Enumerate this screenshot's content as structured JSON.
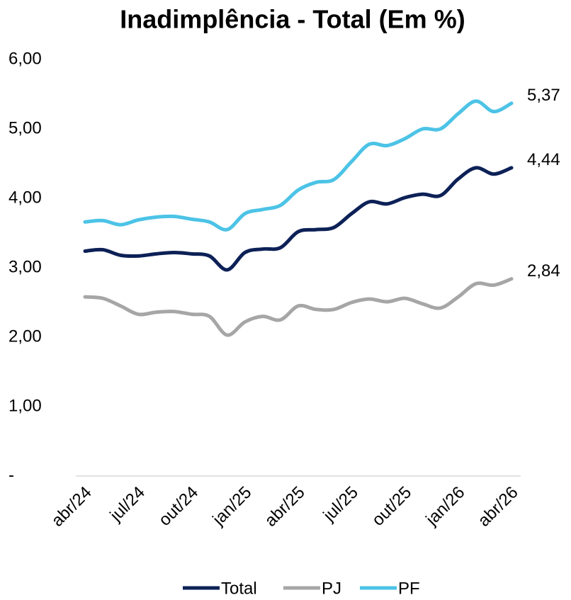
{
  "chart_data": {
    "type": "line",
    "title": "Inadimplência - Total (Em %)",
    "categories": [
      "abr/24",
      null,
      null,
      "jul/24",
      null,
      null,
      "out/24",
      null,
      null,
      "jan/25",
      null,
      null,
      "abr/25",
      null,
      null,
      "jul/25",
      null,
      null,
      "out/25",
      null,
      null,
      "jan/26",
      null,
      null,
      "abr/26"
    ],
    "series": [
      {
        "name": "Total",
        "color": "#0d2157",
        "values": [
          3.24,
          3.26,
          3.18,
          3.17,
          3.2,
          3.22,
          3.2,
          3.17,
          2.97,
          3.22,
          3.27,
          3.29,
          3.52,
          3.55,
          3.58,
          3.78,
          3.95,
          3.92,
          4.01,
          4.06,
          4.04,
          4.28,
          4.44,
          4.35,
          4.44
        ],
        "value_labels": [
          null,
          null,
          null,
          null,
          null,
          null,
          null,
          null,
          null,
          null,
          null,
          null,
          null,
          null,
          null,
          null,
          null,
          null,
          null,
          null,
          null,
          null,
          null,
          null,
          "4,44"
        ]
      },
      {
        "name": "PJ",
        "color": "#a6a6a6",
        "values": [
          2.58,
          2.56,
          2.45,
          2.33,
          2.36,
          2.37,
          2.33,
          2.3,
          2.03,
          2.22,
          2.3,
          2.25,
          2.45,
          2.4,
          2.4,
          2.5,
          2.55,
          2.51,
          2.56,
          2.48,
          2.42,
          2.58,
          2.77,
          2.75,
          2.84
        ],
        "value_labels": [
          null,
          null,
          null,
          null,
          null,
          null,
          null,
          null,
          null,
          null,
          null,
          null,
          null,
          null,
          null,
          null,
          null,
          null,
          null,
          null,
          null,
          null,
          null,
          null,
          "2,84"
        ]
      },
      {
        "name": "PF",
        "color": "#4cc3e6",
        "values": [
          3.66,
          3.68,
          3.62,
          3.69,
          3.73,
          3.74,
          3.7,
          3.66,
          3.55,
          3.78,
          3.84,
          3.9,
          4.12,
          4.23,
          4.27,
          4.53,
          4.78,
          4.76,
          4.86,
          5.0,
          5.0,
          5.22,
          5.4,
          5.25,
          5.37
        ],
        "value_labels": [
          null,
          null,
          null,
          null,
          null,
          null,
          null,
          null,
          null,
          null,
          null,
          null,
          null,
          null,
          null,
          null,
          null,
          null,
          null,
          null,
          null,
          null,
          null,
          null,
          "5,37"
        ]
      }
    ],
    "ylim": [
      0,
      6
    ],
    "yticks": [
      {
        "value": 0,
        "label": "-"
      },
      {
        "value": 1,
        "label": "1,00"
      },
      {
        "value": 2,
        "label": "2,00"
      },
      {
        "value": 3,
        "label": "3,00"
      },
      {
        "value": 4,
        "label": "4,00"
      },
      {
        "value": 5,
        "label": "5,00"
      },
      {
        "value": 6,
        "label": "6,00"
      }
    ],
    "grid": false,
    "legend": "bottom"
  }
}
